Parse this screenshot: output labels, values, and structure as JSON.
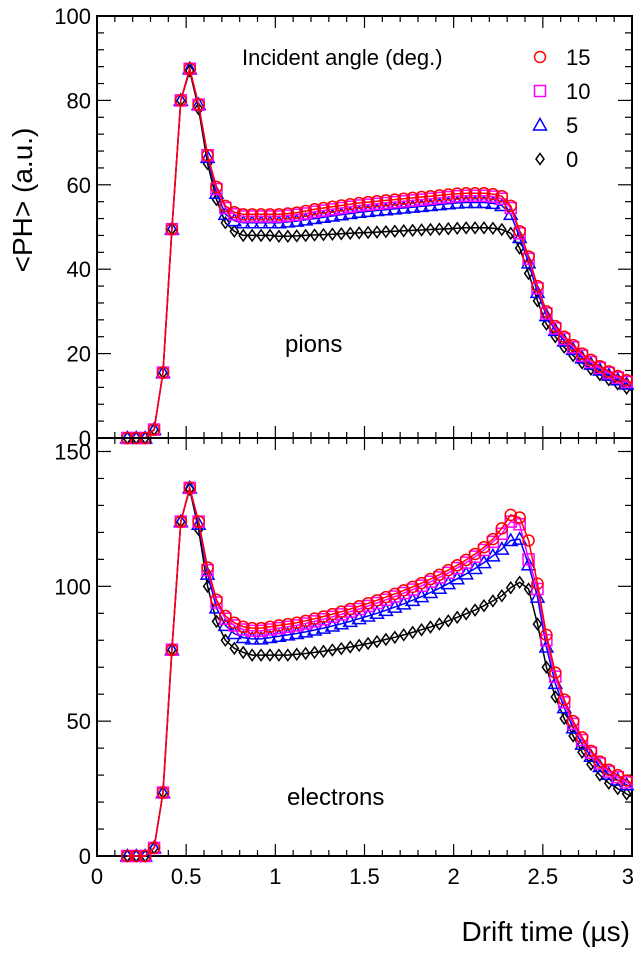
{
  "ylabel": "<PH> (a.u.)",
  "xlabel": "Drift time (µs)",
  "legend": {
    "title": "Incident angle (deg.)",
    "entries": [
      {
        "label": "15",
        "color": "#ff0000",
        "marker": "circle"
      },
      {
        "label": "10",
        "color": "#ff00ff",
        "marker": "square"
      },
      {
        "label": "5",
        "color": "#0000ff",
        "marker": "triangle"
      },
      {
        "label": "0",
        "color": "#000000",
        "marker": "diamond"
      }
    ]
  },
  "chart_data": [
    {
      "type": "line",
      "panel": "top",
      "annotation": "pions",
      "xlim": [
        0,
        3
      ],
      "ylim": [
        0,
        100
      ],
      "xticks": [
        0,
        0.5,
        1,
        1.5,
        2,
        2.5,
        3
      ],
      "yticks": [
        0,
        20,
        40,
        60,
        80,
        100
      ],
      "ytick_labels": [
        "0",
        "20",
        "40",
        "60",
        "80",
        "100"
      ],
      "xtick_labels": [],
      "x": [
        0.17,
        0.22,
        0.27,
        0.32,
        0.37,
        0.42,
        0.47,
        0.52,
        0.57,
        0.62,
        0.67,
        0.72,
        0.77,
        0.82,
        0.87,
        0.92,
        0.97,
        1.02,
        1.07,
        1.12,
        1.17,
        1.22,
        1.27,
        1.32,
        1.37,
        1.42,
        1.47,
        1.52,
        1.57,
        1.62,
        1.67,
        1.72,
        1.77,
        1.82,
        1.87,
        1.92,
        1.97,
        2.02,
        2.07,
        2.12,
        2.17,
        2.22,
        2.27,
        2.32,
        2.37,
        2.42,
        2.47,
        2.52,
        2.57,
        2.62,
        2.67,
        2.72,
        2.77,
        2.82,
        2.87,
        2.92,
        2.97,
        3.0
      ],
      "series": [
        {
          "name": "15",
          "values": [
            0,
            0,
            0,
            2,
            15.5,
            49.5,
            80,
            87.5,
            79,
            67,
            59.5,
            55,
            53.5,
            53,
            53,
            53,
            53,
            53,
            53.2,
            53.4,
            53.8,
            54.2,
            54.5,
            54.8,
            55.1,
            55.4,
            55.7,
            55.9,
            56.1,
            56.3,
            56.5,
            56.7,
            56.9,
            57.1,
            57.3,
            57.5,
            57.7,
            57.9,
            58,
            58,
            58,
            57.8,
            57.3,
            55,
            49,
            43,
            36,
            30,
            26.5,
            24,
            22,
            20,
            18.5,
            17,
            15.8,
            14.7,
            13.7,
            13
          ]
        },
        {
          "name": "10",
          "values": [
            0,
            0,
            0,
            2,
            15.5,
            49.5,
            80,
            87.5,
            79,
            67,
            59,
            54.5,
            53,
            52.5,
            52.5,
            52.5,
            52.5,
            52.5,
            52.7,
            52.9,
            53.2,
            53.6,
            53.9,
            54.2,
            54.5,
            54.8,
            55.1,
            55.3,
            55.5,
            55.7,
            55.9,
            56.1,
            56.3,
            56.5,
            56.7,
            56.9,
            57.1,
            57.3,
            57.4,
            57.4,
            57.4,
            57.2,
            56.7,
            54.5,
            48.5,
            42.5,
            35.5,
            29.5,
            26,
            23.5,
            21.5,
            19.5,
            18,
            16.6,
            15.4,
            14.3,
            13.3,
            12.6
          ]
        },
        {
          "name": "5",
          "values": [
            0,
            0,
            0,
            2,
            15.5,
            49.5,
            80,
            87.5,
            79,
            66.5,
            58,
            53,
            51.5,
            51,
            51,
            51,
            51,
            51,
            51.2,
            51.4,
            51.7,
            52,
            52.3,
            52.6,
            52.9,
            53.2,
            53.5,
            53.7,
            53.9,
            54.1,
            54.3,
            54.5,
            54.7,
            54.9,
            55.1,
            55.3,
            55.5,
            55.7,
            55.8,
            55.8,
            55.8,
            55.6,
            55.1,
            53,
            47.5,
            41.5,
            34.5,
            29,
            25.5,
            23,
            21,
            19,
            17.5,
            16.1,
            14.9,
            13.8,
            12.8,
            12.1
          ]
        },
        {
          "name": "0",
          "values": [
            0,
            0,
            0,
            2,
            15.5,
            49.5,
            80,
            87,
            78,
            65,
            56.5,
            51,
            49,
            48,
            48,
            48,
            48,
            47.8,
            47.8,
            47.9,
            48,
            48.1,
            48.2,
            48.3,
            48.4,
            48.5,
            48.6,
            48.7,
            48.8,
            48.9,
            49,
            49.1,
            49.2,
            49.3,
            49.4,
            49.5,
            49.6,
            49.7,
            49.8,
            49.8,
            49.8,
            49.7,
            49.4,
            48.5,
            45,
            39,
            32.5,
            27,
            24,
            21.5,
            19.5,
            17.8,
            16.3,
            15,
            13.8,
            12.8,
            11.8,
            11.2
          ]
        }
      ]
    },
    {
      "type": "line",
      "panel": "bottom",
      "annotation": "electrons",
      "xlim": [
        0,
        3
      ],
      "ylim": [
        0,
        155
      ],
      "xticks": [
        0,
        0.5,
        1,
        1.5,
        2,
        2.5,
        3
      ],
      "yticks": [
        0,
        50,
        100,
        150
      ],
      "ytick_labels": [
        "0",
        "50",
        "100",
        "150"
      ],
      "xtick_labels": [
        "0",
        "0.5",
        "1",
        "1.5",
        "2",
        "2.5",
        "3"
      ],
      "x": [
        0.17,
        0.22,
        0.27,
        0.32,
        0.37,
        0.42,
        0.47,
        0.52,
        0.57,
        0.62,
        0.67,
        0.72,
        0.77,
        0.82,
        0.87,
        0.92,
        0.97,
        1.02,
        1.07,
        1.12,
        1.17,
        1.22,
        1.27,
        1.32,
        1.37,
        1.42,
        1.47,
        1.52,
        1.57,
        1.62,
        1.67,
        1.72,
        1.77,
        1.82,
        1.87,
        1.92,
        1.97,
        2.02,
        2.07,
        2.12,
        2.17,
        2.22,
        2.27,
        2.32,
        2.37,
        2.42,
        2.47,
        2.52,
        2.57,
        2.62,
        2.67,
        2.72,
        2.77,
        2.82,
        2.87,
        2.92,
        2.97,
        3.0
      ],
      "series": [
        {
          "name": "15",
          "values": [
            0,
            0,
            0,
            3,
            23.5,
            76.5,
            124,
            136.5,
            124,
            107,
            95,
            89,
            86.5,
            85,
            84.5,
            84.5,
            85,
            85.5,
            86,
            86.5,
            87.2,
            88,
            88.8,
            89.7,
            90.6,
            91.6,
            92.6,
            93.7,
            94.8,
            96,
            97.2,
            98.5,
            99.8,
            101.2,
            102.7,
            104.3,
            106,
            107.8,
            109.8,
            112,
            114.5,
            117.5,
            121.5,
            126.5,
            125.5,
            117,
            101,
            82,
            68,
            58,
            50,
            44,
            39,
            35,
            32,
            30,
            28,
            27
          ]
        },
        {
          "name": "10",
          "values": [
            0,
            0,
            0,
            3,
            23.5,
            76.5,
            124,
            136.5,
            124,
            106,
            94,
            88,
            85.5,
            84,
            83.5,
            83.5,
            84,
            84.5,
            85,
            85.5,
            86.2,
            87,
            87.8,
            88.7,
            89.6,
            90.6,
            91.6,
            92.7,
            93.8,
            95,
            96.2,
            97.5,
            98.8,
            100.2,
            101.7,
            103.3,
            105,
            106.8,
            108.8,
            111,
            113.5,
            116.5,
            119.5,
            124,
            123,
            110,
            99,
            80,
            66.5,
            57,
            49,
            43,
            38.3,
            34.3,
            31.3,
            29.2,
            27.3,
            26.3
          ]
        },
        {
          "name": "5",
          "values": [
            0,
            0,
            0,
            3,
            23.5,
            76.5,
            124,
            136.5,
            123,
            104.5,
            92,
            85.5,
            82.5,
            81,
            80.5,
            80.5,
            81,
            81.5,
            82,
            82.5,
            83.1,
            83.8,
            84.5,
            85.3,
            86.1,
            87,
            88,
            89,
            90,
            91.1,
            92.3,
            93.5,
            94.8,
            96.2,
            97.7,
            99.3,
            101,
            102.8,
            104.6,
            106.6,
            108.8,
            111.3,
            113.8,
            117,
            117.5,
            108,
            96,
            77.5,
            64,
            55,
            47.5,
            41.5,
            37,
            33.2,
            30.3,
            28.2,
            26.4,
            25.4
          ]
        },
        {
          "name": "0",
          "values": [
            0,
            0,
            0,
            3,
            23.5,
            76.5,
            124,
            136,
            121,
            100,
            87,
            80,
            77,
            75.5,
            74.5,
            74.5,
            74.5,
            74.5,
            74.5,
            74.8,
            75.1,
            75.5,
            75.9,
            76.4,
            76.9,
            77.5,
            78.1,
            78.8,
            79.5,
            80.3,
            81.1,
            82,
            82.9,
            83.9,
            84.9,
            86,
            87.2,
            88.5,
            89.8,
            91.2,
            92.8,
            94.6,
            96.5,
            99.5,
            101.5,
            99,
            86,
            70,
            59,
            51,
            44.5,
            38.5,
            34,
            30,
            27,
            25,
            23,
            22
          ]
        }
      ]
    }
  ]
}
